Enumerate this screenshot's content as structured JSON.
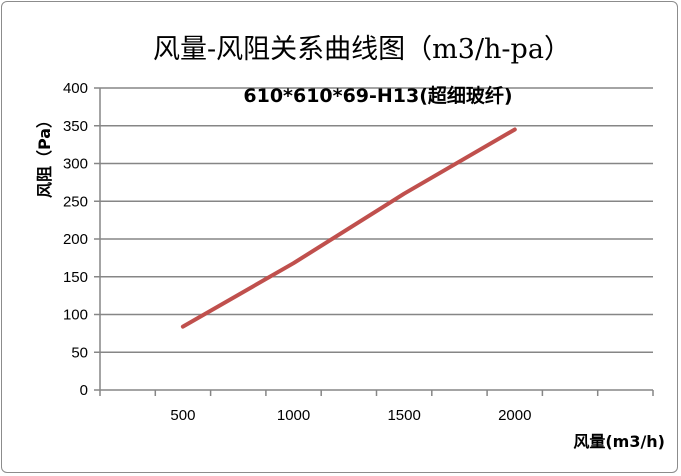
{
  "chart_data": {
    "type": "line",
    "title": "风量-风阻关系曲线图（m3/h-pa）",
    "subtitle": "610*610*69-H13(超细玻纤)",
    "xlabel": "风量(m3/h)",
    "ylabel": "风阻（Pa）",
    "x_categories": [
      "",
      "500",
      "",
      "1000",
      "",
      "1500",
      "",
      "2000",
      "",
      ""
    ],
    "ylim": [
      0,
      400
    ],
    "yticks": [
      0,
      50,
      100,
      150,
      200,
      250,
      300,
      350,
      400
    ],
    "grid": true,
    "legend": "none",
    "series": [
      {
        "color": "#c0504d",
        "points": [
          {
            "x": 500,
            "y": 84
          },
          {
            "x": 1000,
            "y": 168
          },
          {
            "x": 1500,
            "y": 260
          },
          {
            "x": 2000,
            "y": 345
          }
        ]
      }
    ]
  }
}
